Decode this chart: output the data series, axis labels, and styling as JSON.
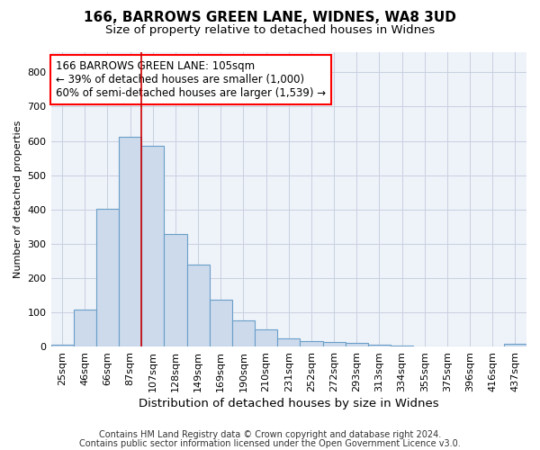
{
  "title1": "166, BARROWS GREEN LANE, WIDNES, WA8 3UD",
  "title2": "Size of property relative to detached houses in Widnes",
  "xlabel": "Distribution of detached houses by size in Widnes",
  "ylabel": "Number of detached properties",
  "categories": [
    "25sqm",
    "46sqm",
    "66sqm",
    "87sqm",
    "107sqm",
    "128sqm",
    "149sqm",
    "169sqm",
    "190sqm",
    "210sqm",
    "231sqm",
    "252sqm",
    "272sqm",
    "293sqm",
    "313sqm",
    "334sqm",
    "355sqm",
    "375sqm",
    "396sqm",
    "416sqm",
    "437sqm"
  ],
  "values": [
    5,
    107,
    403,
    612,
    585,
    328,
    238,
    137,
    77,
    50,
    25,
    15,
    12,
    10,
    5,
    3,
    0,
    0,
    0,
    0,
    7
  ],
  "bar_color": "#ccdaec",
  "bar_edge_color": "#6a9fc8",
  "grid_color": "#c8d0e0",
  "background_color": "#eef2f9",
  "red_line_index": 4,
  "annotation_text_line1": "166 BARROWS GREEN LANE: 105sqm",
  "annotation_text_line2": "← 39% of detached houses are smaller (1,000)",
  "annotation_text_line3": "60% of semi-detached houses are larger (1,539) →",
  "vline_color": "#cc0000",
  "ylim": [
    0,
    860
  ],
  "yticks": [
    0,
    100,
    200,
    300,
    400,
    500,
    600,
    700,
    800
  ],
  "footer1": "Contains HM Land Registry data © Crown copyright and database right 2024.",
  "footer2": "Contains public sector information licensed under the Open Government Licence v3.0.",
  "title1_fontsize": 11,
  "title2_fontsize": 9.5,
  "xlabel_fontsize": 9.5,
  "ylabel_fontsize": 8,
  "tick_fontsize": 8,
  "footer_fontsize": 7
}
